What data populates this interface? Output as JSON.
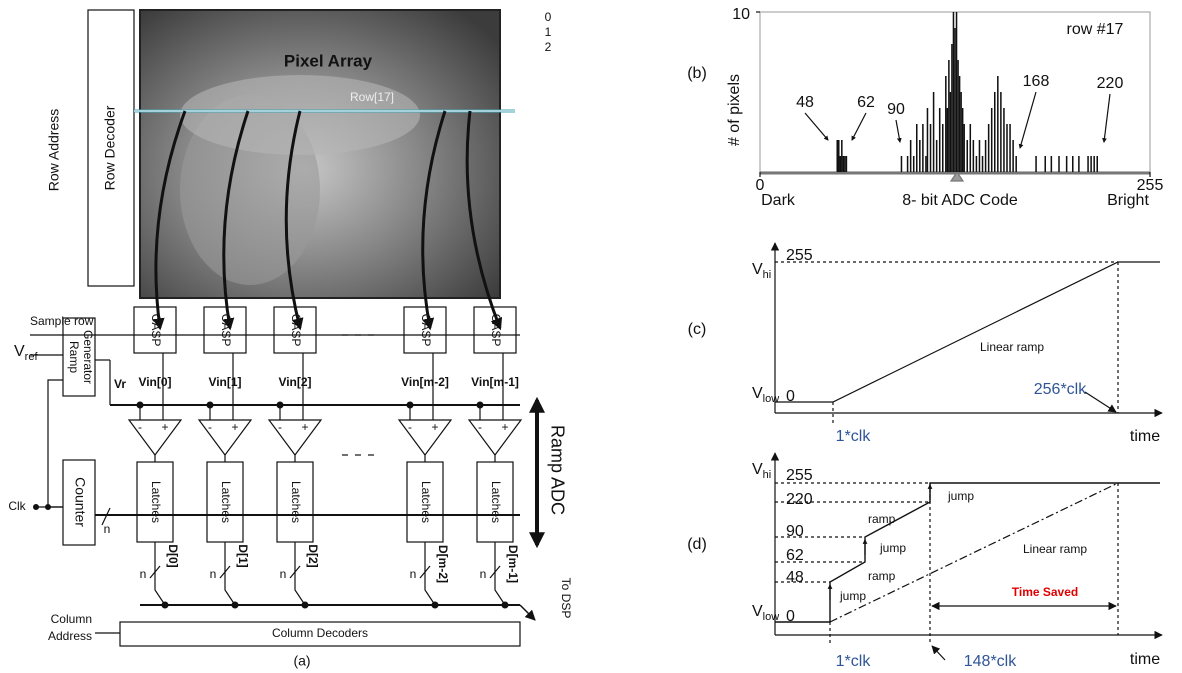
{
  "panel_a": {
    "caption": "(a)",
    "pixel_array": "Pixel Array",
    "row_indices": [
      "0",
      "1",
      "2"
    ],
    "selected_row": "Row[17]",
    "row_address": "Row Address",
    "row_decoder": "Row Decoder",
    "sample_row": "Sample row",
    "columns": [
      {
        "block": "CASP",
        "input": "Vin[0]",
        "latch": "Latches",
        "output": "D[0]"
      },
      {
        "block": "CASP",
        "input": "Vin[1]",
        "latch": "Latches",
        "output": "D[1]"
      },
      {
        "block": "CASP",
        "input": "Vin[2]",
        "latch": "Latches",
        "output": "D[2]"
      },
      {
        "block": "CASP",
        "input": "Vin[m-2]",
        "latch": "Latches",
        "output": "D[m-2]"
      },
      {
        "block": "CASP",
        "input": "Vin[m-1]",
        "latch": "Latches",
        "output": "D[m-1]"
      }
    ],
    "comparator_minus": "-",
    "comparator_plus": "+",
    "vref": {
      "main": "V",
      "sub": "ref"
    },
    "ramp_generator": [
      "Ramp",
      "Generator"
    ],
    "vr": "Vr",
    "counter": "Counter",
    "clk": "Clk",
    "bus_width": "n",
    "ramp_adc": "Ramp ADC",
    "to_dsp": "To DSP",
    "column_address": [
      "Column",
      "Address"
    ],
    "column_decoders": "Column Decoders"
  },
  "panel_b": {
    "caption": "(b)",
    "title": "row #17",
    "y_label": "# of pixels",
    "x_label": "8- bit ADC Code",
    "xlim": [
      0,
      255
    ],
    "ylim": [
      0,
      10
    ],
    "xticks": [
      0,
      255
    ],
    "yticks": [
      10
    ],
    "x_ends": [
      "Dark",
      "Bright"
    ],
    "annotations": [
      48,
      62,
      90,
      168,
      220
    ],
    "histogram": {
      "codes": [
        50,
        51,
        52,
        53,
        54,
        55,
        56,
        92,
        96,
        98,
        100,
        102,
        104,
        106,
        108,
        109,
        111,
        113,
        115,
        117,
        119,
        121,
        122,
        123,
        124,
        125,
        126,
        127,
        128,
        129,
        130,
        131,
        132,
        133,
        135,
        137,
        139,
        141,
        143,
        145,
        147,
        149,
        151,
        153,
        155,
        157,
        159,
        161,
        163,
        165,
        167,
        180,
        186,
        190,
        195,
        200,
        204,
        208,
        214,
        216,
        218,
        220
      ],
      "counts": [
        2,
        2,
        1,
        2,
        1,
        1,
        1,
        1,
        1,
        2,
        1,
        3,
        2,
        3,
        1,
        4,
        3,
        5,
        2,
        4,
        3,
        6,
        4,
        7,
        5,
        8,
        10,
        9,
        10,
        7,
        6,
        5,
        4,
        3,
        2,
        3,
        2,
        1,
        2,
        1,
        2,
        3,
        4,
        5,
        6,
        5,
        4,
        3,
        3,
        2,
        1,
        1,
        1,
        1,
        1,
        1,
        1,
        1,
        1,
        1,
        1,
        1
      ]
    }
  },
  "panel_c": {
    "caption": "(c)",
    "v_hi": {
      "main": "V",
      "sub": "hi"
    },
    "v_low": {
      "main": "V",
      "sub": "low"
    },
    "top_code": "255",
    "bottom_code": "0",
    "curve_label": "Linear ramp",
    "start": "1*clk",
    "end": "256*clk",
    "x_label": "time"
  },
  "panel_d": {
    "caption": "(d)",
    "v_hi": {
      "main": "V",
      "sub": "hi"
    },
    "v_low": {
      "main": "V",
      "sub": "low"
    },
    "levels": [
      "255",
      "220",
      "90",
      "62",
      "48",
      "0"
    ],
    "step_labels": [
      "jump",
      "ramp",
      "jump",
      "ramp",
      "jump"
    ],
    "reference_label": "Linear ramp",
    "saving": "Time Saved",
    "start": "1*clk",
    "end": "148*clk",
    "x_label": "time"
  }
}
